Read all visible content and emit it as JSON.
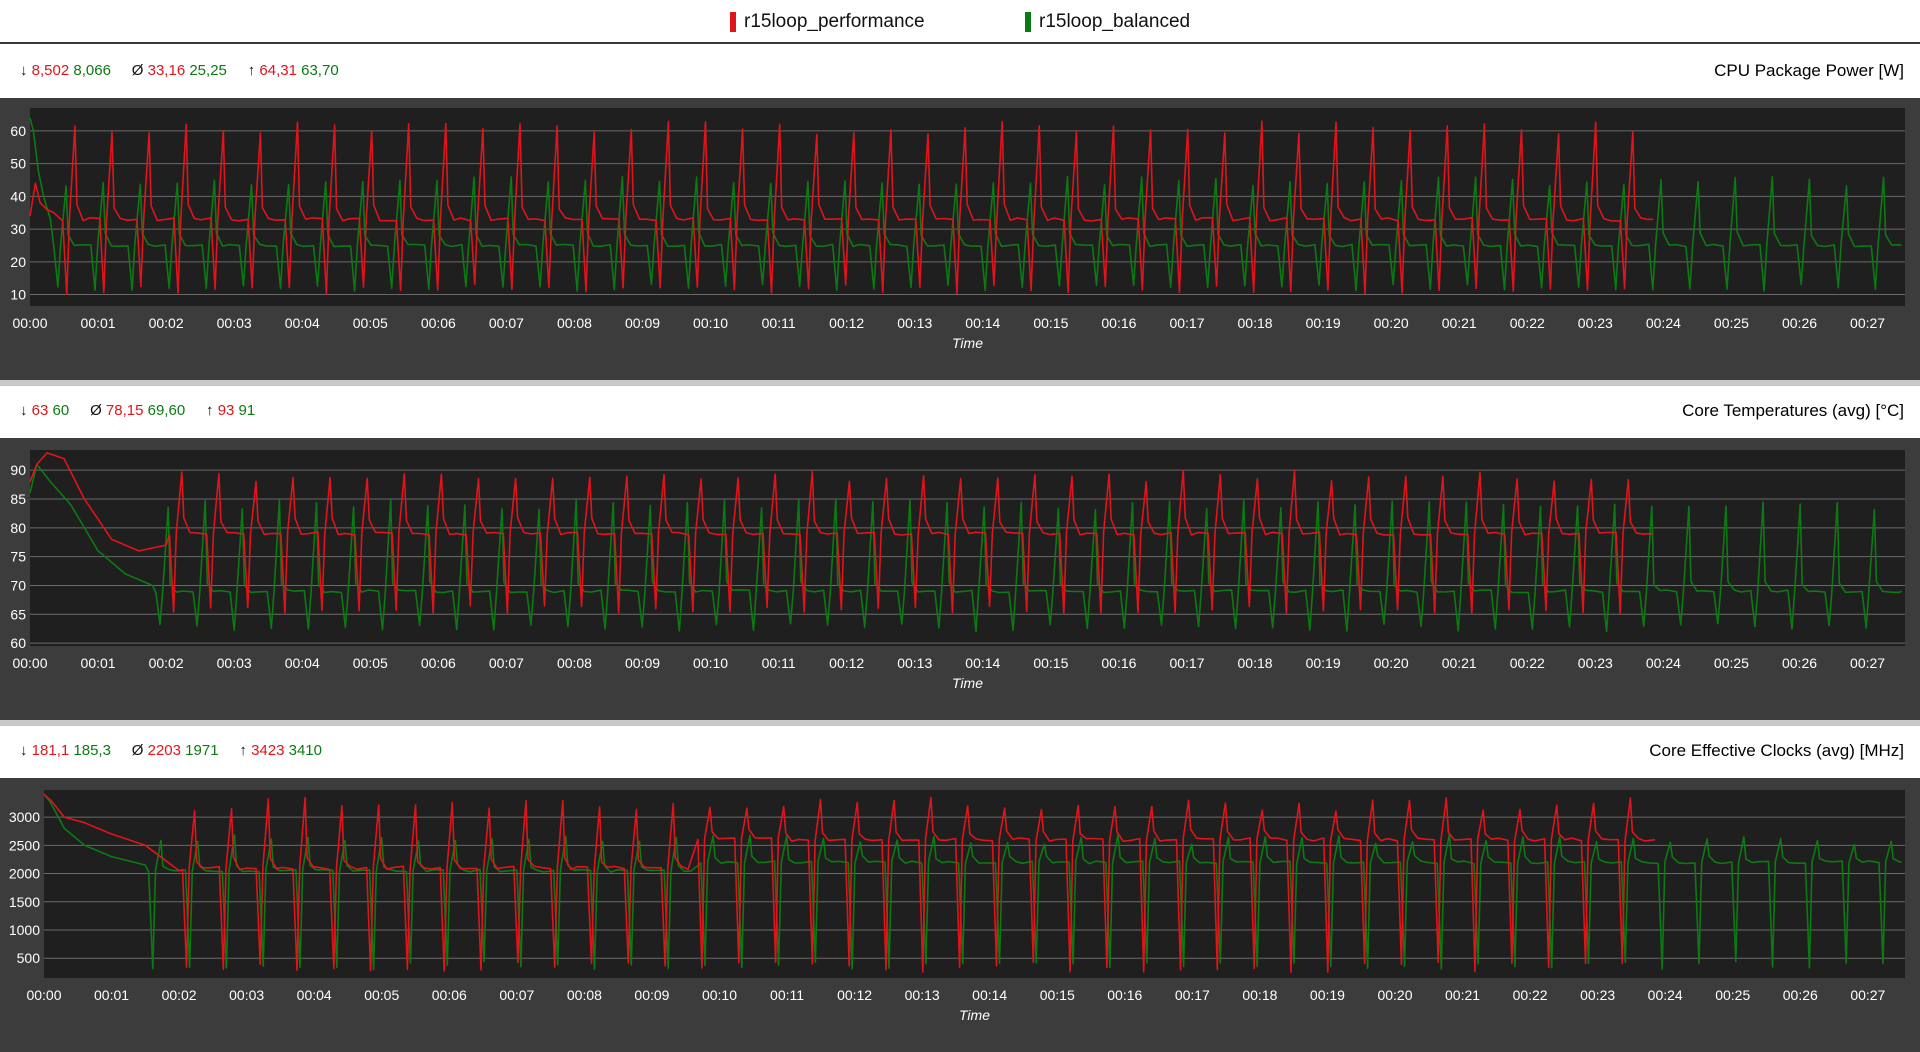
{
  "legend": [
    {
      "label": "r15loop_performance",
      "color": "#e0141b"
    },
    {
      "label": "r15loop_balanced",
      "color": "#0c7a12"
    }
  ],
  "colors": {
    "performance": "#e0141b",
    "balanced": "#0c7a12",
    "plot_bg": "#1f1f1f",
    "panel_bg": "#3c3c3c",
    "grid": "#6a6a6a",
    "axis_text": "#ffffff"
  },
  "chart_data": [
    {
      "type": "line",
      "title": "CPU Package Power [W]",
      "xlabel": "Time",
      "ylabel": "",
      "x_unit": "minutes",
      "x_ticks": [
        "00:00",
        "00:01",
        "00:02",
        "00:03",
        "00:04",
        "00:05",
        "00:06",
        "00:07",
        "00:08",
        "00:09",
        "00:10",
        "00:11",
        "00:12",
        "00:13",
        "00:14",
        "00:15",
        "00:16",
        "00:17",
        "00:18",
        "00:19",
        "00:20",
        "00:21",
        "00:22",
        "00:23",
        "00:24",
        "00:25",
        "00:26",
        "00:27"
      ],
      "xlim": [
        0,
        27.55
      ],
      "y_ticks": [
        10,
        20,
        30,
        40,
        50,
        60
      ],
      "ylim": [
        6.5,
        67
      ],
      "grid": true,
      "legend": "top",
      "stats": {
        "min": [
          "8,502",
          "8,066"
        ],
        "avg": [
          "33,16",
          "25,25"
        ],
        "max": [
          "64,31",
          "63,70"
        ]
      },
      "series": [
        {
          "name": "r15loop_performance",
          "color": "#e0141b",
          "end": 23.85,
          "period": 0.545,
          "phase": 0.18,
          "start_values": [
            [
              0,
              34
            ],
            [
              0.08,
              44
            ],
            [
              0.15,
              38
            ],
            [
              0.25,
              36
            ],
            [
              0.35,
              35
            ]
          ],
          "base": 33,
          "peak": 63,
          "dip": 10,
          "shoulder": 36
        },
        {
          "name": "r15loop_balanced",
          "color": "#0c7a12",
          "end": 27.5,
          "period": 0.545,
          "phase": 0.0,
          "start_values": [
            [
              0,
              64
            ],
            [
              0.05,
              60
            ],
            [
              0.12,
              48
            ],
            [
              0.2,
              40
            ],
            [
              0.3,
              33
            ]
          ],
          "base": 25,
          "peak": 46,
          "dip": 11,
          "shoulder": 28
        }
      ]
    },
    {
      "type": "line",
      "title": "Core Temperatures (avg) [°C]",
      "xlabel": "Time",
      "ylabel": "",
      "x_unit": "minutes",
      "x_ticks": [
        "00:00",
        "00:01",
        "00:02",
        "00:03",
        "00:04",
        "00:05",
        "00:06",
        "00:07",
        "00:08",
        "00:09",
        "00:10",
        "00:11",
        "00:12",
        "00:13",
        "00:14",
        "00:15",
        "00:16",
        "00:17",
        "00:18",
        "00:19",
        "00:20",
        "00:21",
        "00:22",
        "00:23",
        "00:24",
        "00:25",
        "00:26",
        "00:27"
      ],
      "xlim": [
        0,
        27.55
      ],
      "y_ticks": [
        60,
        65,
        70,
        75,
        80,
        85,
        90
      ],
      "ylim": [
        59.5,
        93.5
      ],
      "grid": true,
      "legend": "top",
      "stats": {
        "min": [
          "63",
          "60"
        ],
        "avg": [
          "78,15",
          "69,60"
        ],
        "max": [
          "93",
          "91"
        ]
      },
      "series": [
        {
          "name": "r15loop_performance",
          "color": "#e0141b",
          "end": 23.85,
          "period": 0.545,
          "phase": 0.18,
          "start_values": [
            [
              0,
              88
            ],
            [
              0.1,
              91
            ],
            [
              0.25,
              93
            ],
            [
              0.5,
              92
            ],
            [
              0.8,
              85
            ],
            [
              1.2,
              78
            ],
            [
              1.6,
              76
            ],
            [
              2.0,
              77
            ]
          ],
          "base": 79,
          "peak": 90,
          "dip": 65,
          "shoulder": 81
        },
        {
          "name": "r15loop_balanced",
          "color": "#0c7a12",
          "end": 27.5,
          "period": 0.545,
          "phase": 0.0,
          "start_values": [
            [
              0,
              86
            ],
            [
              0.1,
              91
            ],
            [
              0.3,
              88
            ],
            [
              0.6,
              84
            ],
            [
              1.0,
              76
            ],
            [
              1.4,
              72
            ],
            [
              1.8,
              70
            ]
          ],
          "base": 69,
          "peak": 85,
          "dip": 62,
          "shoulder": 70
        }
      ]
    },
    {
      "type": "line",
      "title": "Core Effective Clocks (avg) [MHz]",
      "xlabel": "Time",
      "ylabel": "",
      "x_unit": "minutes",
      "x_ticks": [
        "00:00",
        "00:01",
        "00:02",
        "00:03",
        "00:04",
        "00:05",
        "00:06",
        "00:07",
        "00:08",
        "00:09",
        "00:10",
        "00:11",
        "00:12",
        "00:13",
        "00:14",
        "00:15",
        "00:16",
        "00:17",
        "00:18",
        "00:19",
        "00:20",
        "00:21",
        "00:22",
        "00:23",
        "00:24",
        "00:25",
        "00:26",
        "00:27"
      ],
      "xlim": [
        0,
        27.55
      ],
      "y_ticks": [
        500,
        1000,
        1500,
        2000,
        2500,
        3000
      ],
      "ylim": [
        150,
        3480
      ],
      "grid": true,
      "legend": "top",
      "stats": {
        "min": [
          "181,1",
          "185,3"
        ],
        "avg": [
          "2203",
          "1971"
        ],
        "max": [
          "3423",
          "3410"
        ]
      },
      "series": [
        {
          "name": "r15loop_performance",
          "color": "#e0141b",
          "end": 23.85,
          "period": 0.545,
          "phase": 0.18,
          "start_values": [
            [
              0,
              3400
            ],
            [
              0.1,
              3300
            ],
            [
              0.3,
              3000
            ],
            [
              0.6,
              2900
            ],
            [
              1.0,
              2700
            ],
            [
              1.5,
              2500
            ],
            [
              2.0,
              2050
            ]
          ],
          "base": 2100,
          "base_late": 2600,
          "late_from": 9.4,
          "peak": 3350,
          "dip": 250,
          "shoulder": 2200
        },
        {
          "name": "r15loop_balanced",
          "color": "#0c7a12",
          "end": 27.5,
          "period": 0.545,
          "phase": 0.0,
          "start_values": [
            [
              0,
              3410
            ],
            [
              0.1,
              3250
            ],
            [
              0.3,
              2800
            ],
            [
              0.6,
              2500
            ],
            [
              1.0,
              2300
            ],
            [
              1.5,
              2150
            ]
          ],
          "base": 2050,
          "base_late": 2200,
          "late_from": 9.4,
          "peak": 2700,
          "dip": 300,
          "shoulder": 2100
        }
      ]
    }
  ]
}
